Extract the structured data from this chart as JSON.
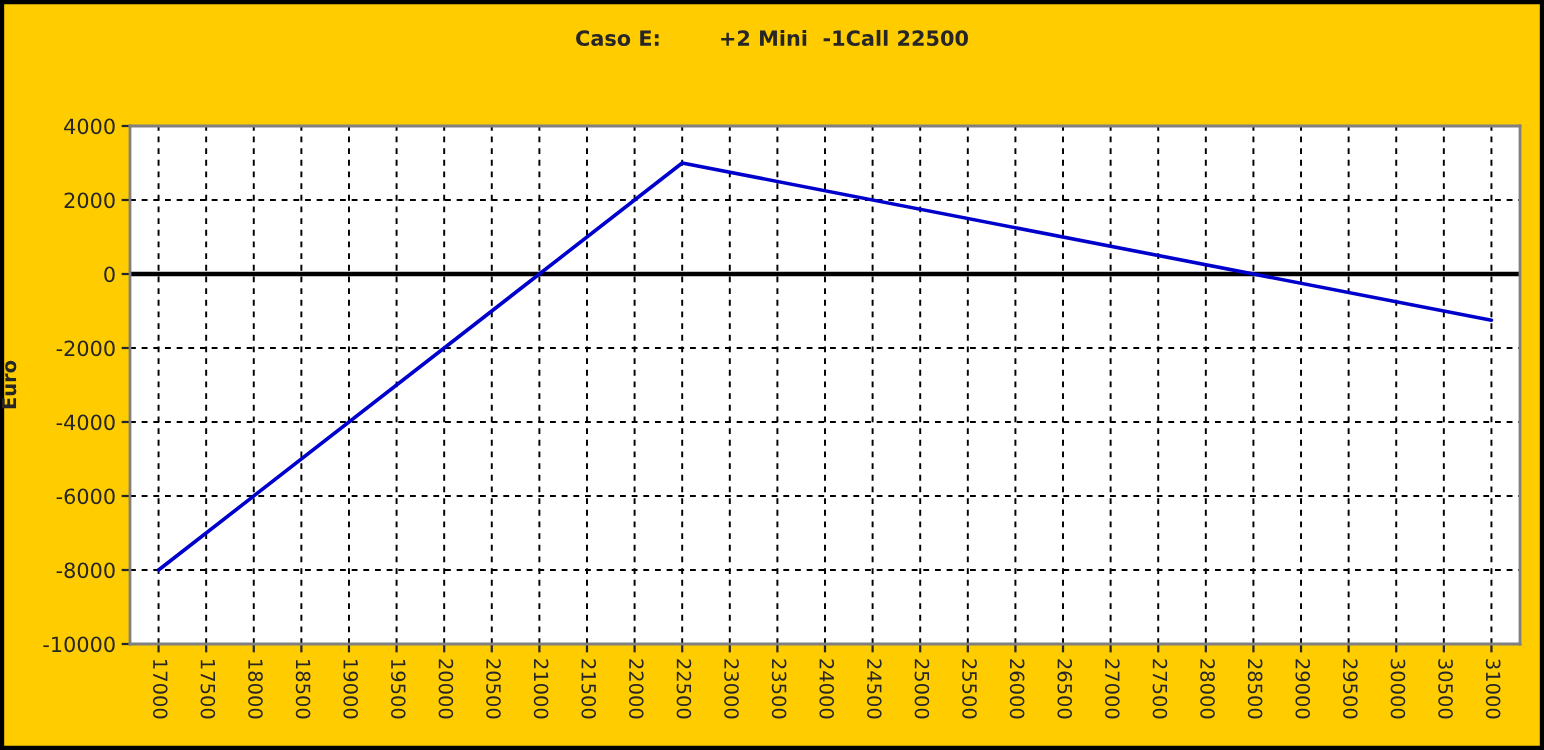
{
  "chart_data": {
    "type": "line",
    "title": "Caso E:        +2 Mini  -1Call 22500",
    "ylabel": "Euro",
    "x": [
      17000,
      22500,
      31000
    ],
    "series": [
      {
        "color": "#0000cc",
        "values": [
          -8000,
          3000,
          -1250
        ]
      }
    ],
    "xlim": [
      16700,
      31300
    ],
    "xticks": [
      17000,
      17500,
      18000,
      18500,
      19000,
      19500,
      20000,
      20500,
      21000,
      21500,
      22000,
      22500,
      23000,
      23500,
      24000,
      24500,
      25000,
      25500,
      26000,
      26500,
      27000,
      27500,
      28000,
      28500,
      29000,
      29500,
      30000,
      30500,
      31000
    ],
    "ylim": [
      -10000,
      4000
    ],
    "yticks": [
      -10000,
      -8000,
      -6000,
      -4000,
      -2000,
      0,
      2000,
      4000
    ],
    "grid": true,
    "marker": "none",
    "line_style": "solid",
    "ref_lines": [
      {
        "axis": "y",
        "value": 0,
        "color": "#000000",
        "line_style": "solid"
      }
    ]
  }
}
